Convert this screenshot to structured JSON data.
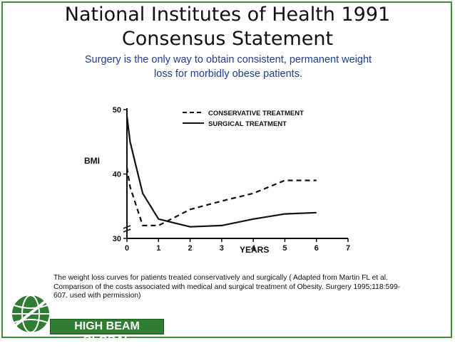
{
  "slide": {
    "title_line1": "National Institutes of Health  1991",
    "title_line2": "Consensus Statement",
    "subtitle_line1": "Surgery is the only way to obtain consistent, permanent weight",
    "subtitle_line2": "loss for morbidly obese patients.",
    "caption_line1": "The weight loss curves  for patients treated conservatively  and surgically ( Adapted from Martin FL et al.",
    "caption_line2": "Comparison of the costs associated with medical and surgical treatment of Obesity. Surgery 1995;118:599-",
    "caption_line3": "607. used with permission)",
    "logo_text": "HIGH BEAM GLOBAL"
  },
  "colors": {
    "border": "#3f8f3f",
    "subtitle": "#1f3d99",
    "logo_green": "#2f7d32"
  },
  "chart_data": {
    "type": "line",
    "xlabel": "YEARS",
    "ylabel": "BMI",
    "xlim": [
      0,
      7
    ],
    "ylim": [
      30,
      50
    ],
    "x_ticks": [
      "0",
      "1",
      "2",
      "3",
      "4",
      "5",
      "6",
      "7"
    ],
    "y_ticks": [
      "30",
      "40",
      "50"
    ],
    "legend_position": "top-right",
    "grid": false,
    "series": [
      {
        "name": "CONSERVATIVE TREATMENT",
        "style": "dashed",
        "x": [
          0,
          0.1,
          0.5,
          1.0,
          2.0,
          3.0,
          4.0,
          5.0,
          6.0
        ],
        "y": [
          41,
          38,
          32,
          32,
          34.5,
          35.8,
          37,
          39,
          39
        ]
      },
      {
        "name": "SURGICAL TREATMENT",
        "style": "solid",
        "x": [
          0,
          0.1,
          0.5,
          1.0,
          2.0,
          3.0,
          4.0,
          5.0,
          6.0
        ],
        "y": [
          49,
          45,
          37,
          33,
          31.8,
          32,
          33,
          33.8,
          34
        ]
      }
    ]
  }
}
